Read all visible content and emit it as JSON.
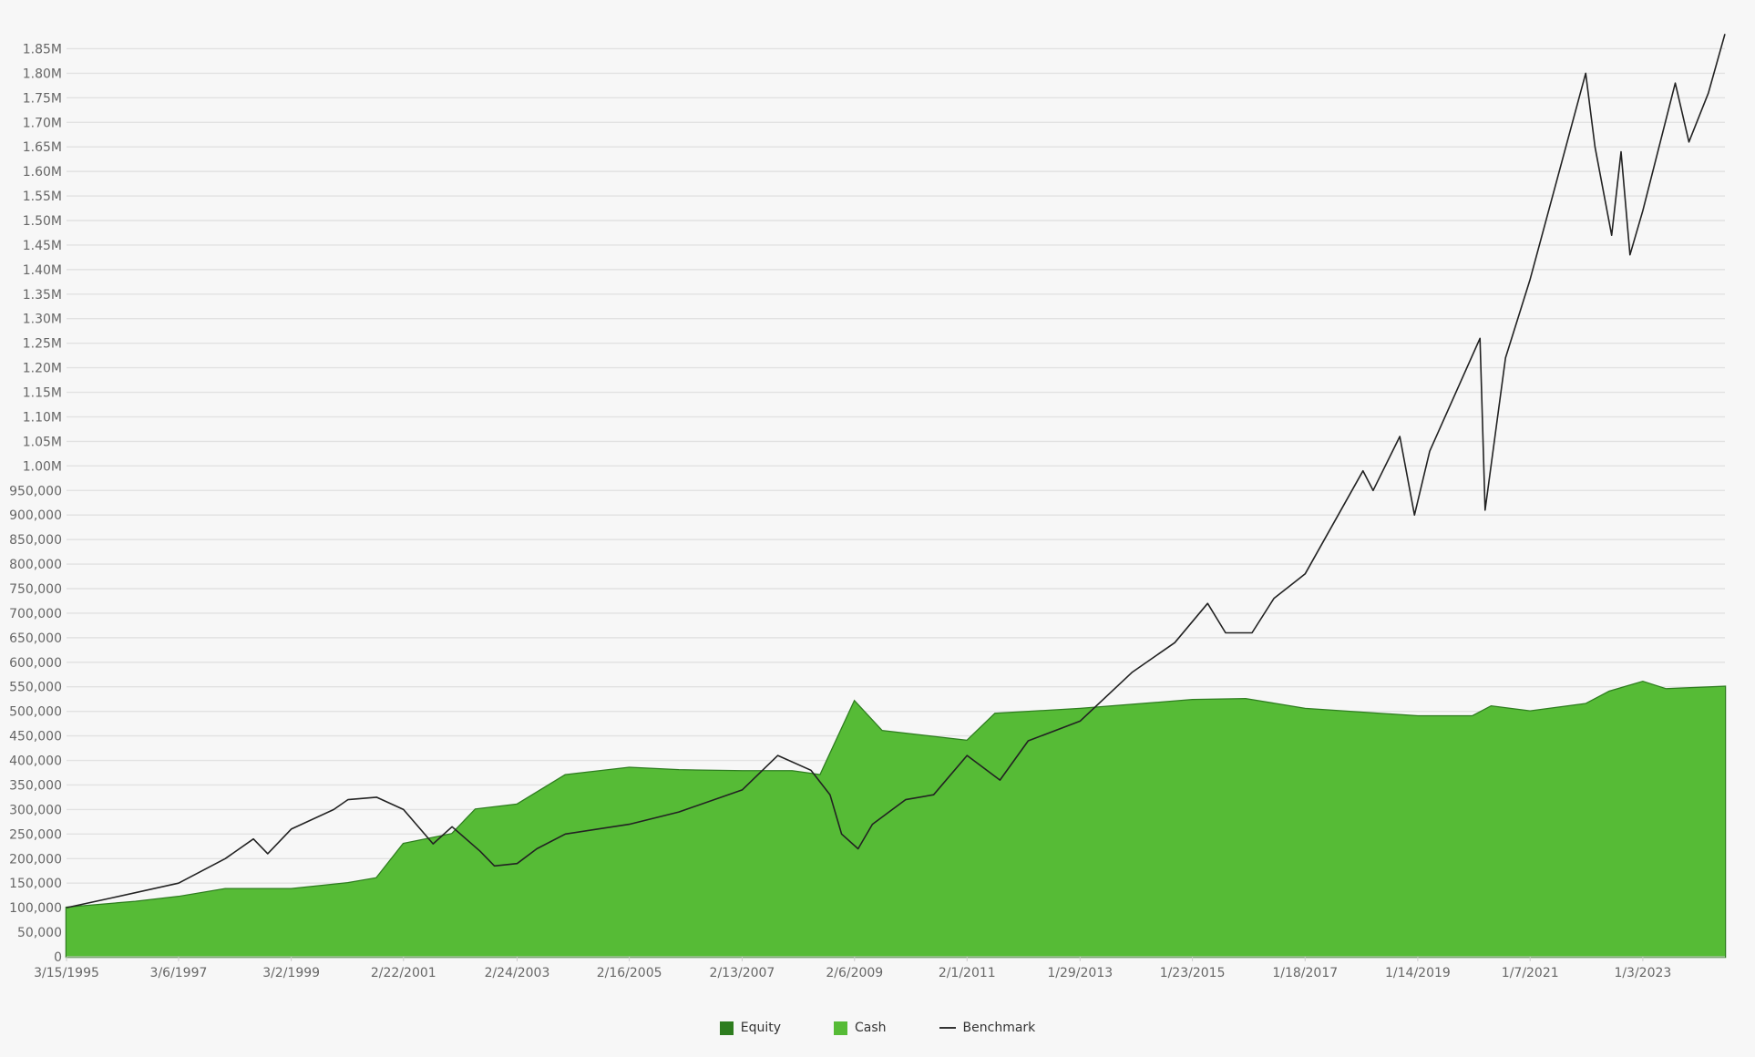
{
  "chart_data": {
    "type": "area",
    "title": "",
    "xlabel": "",
    "ylabel": "",
    "ylim": [
      0,
      1875000
    ],
    "y_ticks": [
      {
        "value": 0,
        "label": "0"
      },
      {
        "value": 50000,
        "label": "50,000"
      },
      {
        "value": 100000,
        "label": "100,000"
      },
      {
        "value": 150000,
        "label": "150,000"
      },
      {
        "value": 200000,
        "label": "200,000"
      },
      {
        "value": 250000,
        "label": "250,000"
      },
      {
        "value": 300000,
        "label": "300,000"
      },
      {
        "value": 350000,
        "label": "350,000"
      },
      {
        "value": 400000,
        "label": "400,000"
      },
      {
        "value": 450000,
        "label": "450,000"
      },
      {
        "value": 500000,
        "label": "500,000"
      },
      {
        "value": 550000,
        "label": "550,000"
      },
      {
        "value": 600000,
        "label": "600,000"
      },
      {
        "value": 650000,
        "label": "650,000"
      },
      {
        "value": 700000,
        "label": "700,000"
      },
      {
        "value": 750000,
        "label": "750,000"
      },
      {
        "value": 800000,
        "label": "800,000"
      },
      {
        "value": 850000,
        "label": "850,000"
      },
      {
        "value": 900000,
        "label": "900,000"
      },
      {
        "value": 950000,
        "label": "950,000"
      },
      {
        "value": 1000000,
        "label": "1.00M"
      },
      {
        "value": 1050000,
        "label": "1.05M"
      },
      {
        "value": 1100000,
        "label": "1.10M"
      },
      {
        "value": 1150000,
        "label": "1.15M"
      },
      {
        "value": 1200000,
        "label": "1.20M"
      },
      {
        "value": 1250000,
        "label": "1.25M"
      },
      {
        "value": 1300000,
        "label": "1.30M"
      },
      {
        "value": 1350000,
        "label": "1.35M"
      },
      {
        "value": 1400000,
        "label": "1.40M"
      },
      {
        "value": 1450000,
        "label": "1.45M"
      },
      {
        "value": 1500000,
        "label": "1.50M"
      },
      {
        "value": 1550000,
        "label": "1.55M"
      },
      {
        "value": 1600000,
        "label": "1.60M"
      },
      {
        "value": 1650000,
        "label": "1.65M"
      },
      {
        "value": 1700000,
        "label": "1.70M"
      },
      {
        "value": 1750000,
        "label": "1.75M"
      },
      {
        "value": 1800000,
        "label": "1.80M"
      },
      {
        "value": 1850000,
        "label": "1.85M"
      }
    ],
    "x_range": [
      "1995-03-15",
      "2024-06-15"
    ],
    "x_ticks": [
      {
        "date": "1995-03-15",
        "label": "3/15/1995"
      },
      {
        "date": "1997-03-06",
        "label": "3/6/1997"
      },
      {
        "date": "1999-03-02",
        "label": "3/2/1999"
      },
      {
        "date": "2001-02-22",
        "label": "2/22/2001"
      },
      {
        "date": "2003-02-24",
        "label": "2/24/2003"
      },
      {
        "date": "2005-02-16",
        "label": "2/16/2005"
      },
      {
        "date": "2007-02-13",
        "label": "2/13/2007"
      },
      {
        "date": "2009-02-06",
        "label": "2/6/2009"
      },
      {
        "date": "2011-02-01",
        "label": "2/1/2011"
      },
      {
        "date": "2013-01-29",
        "label": "1/29/2013"
      },
      {
        "date": "2015-01-23",
        "label": "1/23/2015"
      },
      {
        "date": "2017-01-18",
        "label": "1/18/2017"
      },
      {
        "date": "2019-01-14",
        "label": "1/14/2019"
      },
      {
        "date": "2021-01-07",
        "label": "1/7/2021"
      },
      {
        "date": "2023-01-03",
        "label": "1/3/2023"
      }
    ],
    "grid": true,
    "legend_position": "bottom-center",
    "series": [
      {
        "name": "Equity",
        "type": "area",
        "color": "#2e7d1f",
        "points": [
          [
            "1995-03-15",
            100000
          ],
          [
            "1996-06-01",
            112000
          ],
          [
            "1997-03-06",
            122000
          ],
          [
            "1998-01-01",
            138000
          ],
          [
            "1999-03-02",
            138000
          ],
          [
            "2000-03-01",
            150000
          ],
          [
            "2000-09-01",
            160000
          ],
          [
            "2001-02-22",
            230000
          ],
          [
            "2002-01-01",
            250000
          ],
          [
            "2002-06-01",
            300000
          ],
          [
            "2003-02-24",
            310000
          ],
          [
            "2004-01-01",
            370000
          ],
          [
            "2005-02-16",
            385000
          ],
          [
            "2006-01-01",
            380000
          ],
          [
            "2007-02-13",
            378000
          ],
          [
            "2008-01-01",
            378000
          ],
          [
            "2008-07-01",
            370000
          ],
          [
            "2009-02-06",
            520000
          ],
          [
            "2009-08-01",
            460000
          ],
          [
            "2011-02-01",
            440000
          ],
          [
            "2011-08-01",
            495000
          ],
          [
            "2013-01-29",
            505000
          ],
          [
            "2015-01-23",
            523000
          ],
          [
            "2016-01-01",
            525000
          ],
          [
            "2017-01-18",
            505000
          ],
          [
            "2019-01-14",
            490000
          ],
          [
            "2020-01-01",
            490000
          ],
          [
            "2020-05-01",
            510000
          ],
          [
            "2021-01-07",
            500000
          ],
          [
            "2022-01-01",
            515000
          ],
          [
            "2022-06-01",
            540000
          ],
          [
            "2023-01-03",
            560000
          ],
          [
            "2023-06-01",
            545000
          ],
          [
            "2024-06-15",
            550000
          ]
        ]
      },
      {
        "name": "Cash",
        "type": "area",
        "color": "#56bb36",
        "points": [
          [
            "1995-03-15",
            100000
          ],
          [
            "1996-06-01",
            112000
          ],
          [
            "1997-03-06",
            122000
          ],
          [
            "1998-01-01",
            138000
          ],
          [
            "1999-03-02",
            138000
          ],
          [
            "2000-03-01",
            150000
          ],
          [
            "2000-09-01",
            160000
          ],
          [
            "2001-02-22",
            230000
          ],
          [
            "2002-01-01",
            250000
          ],
          [
            "2002-06-01",
            300000
          ],
          [
            "2003-02-24",
            310000
          ],
          [
            "2004-01-01",
            370000
          ],
          [
            "2005-02-16",
            385000
          ],
          [
            "2006-01-01",
            380000
          ],
          [
            "2007-02-13",
            378000
          ],
          [
            "2008-01-01",
            378000
          ],
          [
            "2008-07-01",
            370000
          ],
          [
            "2009-02-06",
            520000
          ],
          [
            "2009-08-01",
            460000
          ],
          [
            "2011-02-01",
            440000
          ],
          [
            "2011-08-01",
            495000
          ],
          [
            "2013-01-29",
            505000
          ],
          [
            "2015-01-23",
            523000
          ],
          [
            "2016-01-01",
            525000
          ],
          [
            "2017-01-18",
            505000
          ],
          [
            "2019-01-14",
            490000
          ],
          [
            "2020-01-01",
            490000
          ],
          [
            "2020-05-01",
            510000
          ],
          [
            "2021-01-07",
            500000
          ],
          [
            "2022-01-01",
            515000
          ],
          [
            "2022-06-01",
            540000
          ],
          [
            "2023-01-03",
            560000
          ],
          [
            "2023-06-01",
            545000
          ],
          [
            "2024-06-15",
            550000
          ]
        ]
      },
      {
        "name": "Benchmark",
        "type": "line",
        "color": "#222222",
        "points": [
          [
            "1995-03-15",
            100000
          ],
          [
            "1996-01-01",
            120000
          ],
          [
            "1997-03-06",
            150000
          ],
          [
            "1998-01-01",
            200000
          ],
          [
            "1998-07-01",
            240000
          ],
          [
            "1998-10-01",
            210000
          ],
          [
            "1999-03-02",
            260000
          ],
          [
            "1999-12-01",
            300000
          ],
          [
            "2000-03-01",
            320000
          ],
          [
            "2000-09-01",
            325000
          ],
          [
            "2001-02-22",
            300000
          ],
          [
            "2001-09-01",
            230000
          ],
          [
            "2002-01-01",
            265000
          ],
          [
            "2002-07-01",
            215000
          ],
          [
            "2002-10-01",
            185000
          ],
          [
            "2003-02-24",
            190000
          ],
          [
            "2003-07-01",
            220000
          ],
          [
            "2004-01-01",
            250000
          ],
          [
            "2005-02-16",
            270000
          ],
          [
            "2006-01-01",
            295000
          ],
          [
            "2007-02-13",
            340000
          ],
          [
            "2007-10-01",
            410000
          ],
          [
            "2008-05-01",
            380000
          ],
          [
            "2008-09-01",
            330000
          ],
          [
            "2008-11-15",
            250000
          ],
          [
            "2009-03-01",
            220000
          ],
          [
            "2009-06-01",
            270000
          ],
          [
            "2010-01-01",
            320000
          ],
          [
            "2010-07-01",
            330000
          ],
          [
            "2011-02-01",
            410000
          ],
          [
            "2011-09-01",
            360000
          ],
          [
            "2012-03-01",
            440000
          ],
          [
            "2013-01-29",
            480000
          ],
          [
            "2014-01-01",
            580000
          ],
          [
            "2014-10-01",
            640000
          ],
          [
            "2015-05-01",
            720000
          ],
          [
            "2015-08-25",
            660000
          ],
          [
            "2016-02-11",
            660000
          ],
          [
            "2016-07-01",
            730000
          ],
          [
            "2017-01-18",
            780000
          ],
          [
            "2018-01-26",
            990000
          ],
          [
            "2018-04-01",
            950000
          ],
          [
            "2018-09-20",
            1060000
          ],
          [
            "2018-12-24",
            900000
          ],
          [
            "2019-04-01",
            1030000
          ],
          [
            "2020-02-19",
            1260000
          ],
          [
            "2020-03-23",
            910000
          ],
          [
            "2020-08-01",
            1220000
          ],
          [
            "2021-01-07",
            1380000
          ],
          [
            "2021-06-01",
            1550000
          ],
          [
            "2021-12-31",
            1800000
          ],
          [
            "2022-03-01",
            1650000
          ],
          [
            "2022-06-16",
            1470000
          ],
          [
            "2022-08-16",
            1640000
          ],
          [
            "2022-10-12",
            1430000
          ],
          [
            "2023-01-03",
            1520000
          ],
          [
            "2023-07-31",
            1780000
          ],
          [
            "2023-10-27",
            1660000
          ],
          [
            "2024-03-01",
            1760000
          ],
          [
            "2024-06-15",
            1880000
          ]
        ]
      }
    ],
    "legend": [
      {
        "label": "Equity",
        "color": "#2e7d1f",
        "kind": "square"
      },
      {
        "label": "Cash",
        "color": "#56bb36",
        "kind": "square"
      },
      {
        "label": "Benchmark",
        "color": "#333333",
        "kind": "line"
      }
    ]
  }
}
